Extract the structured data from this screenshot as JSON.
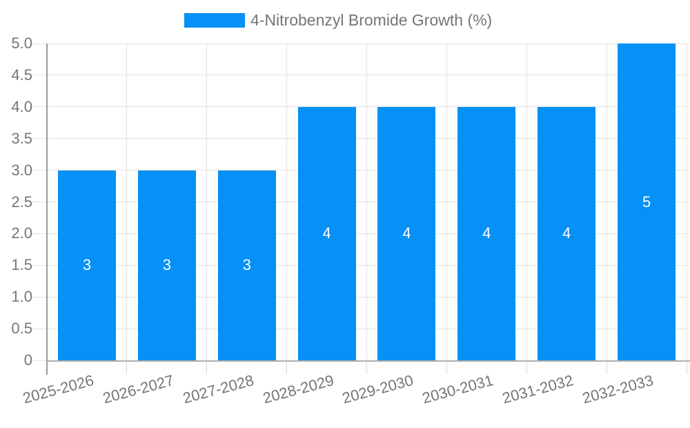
{
  "chart_data": {
    "type": "bar",
    "legend": "4-Nitrobenzyl Bromide Growth (%)",
    "categories": [
      "2025-2026",
      "2026-2027",
      "2027-2028",
      "2028-2029",
      "2029-2030",
      "2030-2031",
      "2031-2032",
      "2032-2033"
    ],
    "values": [
      3,
      3,
      3,
      4,
      4,
      4,
      4,
      5
    ],
    "bar_value_labels": [
      "3",
      "3",
      "3",
      "4",
      "4",
      "4",
      "4",
      "5"
    ],
    "ylim": [
      0,
      5
    ],
    "ytick_step": 0.5,
    "ytick_labels": [
      "0",
      "0.5",
      "1.0",
      "1.5",
      "2.0",
      "2.5",
      "3.0",
      "3.5",
      "4.0",
      "4.5",
      "5.0"
    ],
    "grid": true,
    "legend_position": "top-center",
    "colors": {
      "bar": "#0591f5",
      "gridline": "#e2e2e2",
      "axis_line": "#a0a0a0",
      "axis_text": "#757575",
      "bar_label_text": "#ffffff"
    }
  }
}
